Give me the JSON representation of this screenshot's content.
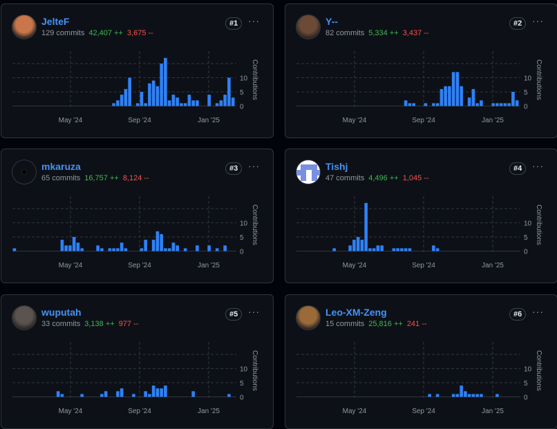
{
  "colors": {
    "accent": "#4493f8",
    "bar": "#2f81f7",
    "additions": "#3fb950",
    "deletions": "#f85149",
    "muted": "#9198a1",
    "background": "#0d1117",
    "border": "#30363d"
  },
  "chart_axis": {
    "ylabel": "Contributions",
    "yticks": [
      0,
      5,
      10
    ],
    "xticks": [
      "May '24",
      "Sep '24",
      "Jan '25"
    ],
    "gridlines": [
      0,
      5,
      10,
      15
    ]
  },
  "contributors": [
    {
      "name": "JelteF",
      "commits": "129 commits",
      "additions": "42,407 ++",
      "deletions": "3,675 --",
      "rank": "#1",
      "more": "···",
      "avatar_color": "#c8764a"
    },
    {
      "name": "Y--",
      "commits": "82 commits",
      "additions": "5,334 ++",
      "deletions": "3,437 --",
      "rank": "#2",
      "more": "···",
      "avatar_color": "#6b4a36"
    },
    {
      "name": "mkaruza",
      "commits": "65 commits",
      "additions": "16,757 ++",
      "deletions": "8,124 --",
      "rank": "#3",
      "more": "···",
      "avatar_color": "#0d1117"
    },
    {
      "name": "Tishj",
      "commits": "47 commits",
      "additions": "4,496 ++",
      "deletions": "1,045 --",
      "rank": "#4",
      "more": "···",
      "avatar_color": "#7b8fe0"
    },
    {
      "name": "wuputah",
      "commits": "33 commits",
      "additions": "3,138 ++",
      "deletions": "977 --",
      "rank": "#5",
      "more": "···",
      "avatar_color": "#5a5350"
    },
    {
      "name": "Leo-XM-Zeng",
      "commits": "15 commits",
      "additions": "25,816 ++",
      "deletions": "241 --",
      "rank": "#6",
      "more": "···",
      "avatar_color": "#9a6a3a"
    }
  ],
  "chart_data": [
    {
      "type": "bar",
      "series_of": "JelteF",
      "x_unit": "week",
      "x_start": "Jan '24",
      "ylabel": "Contributions",
      "values": [
        0,
        0,
        0,
        0,
        0,
        0,
        0,
        0,
        0,
        0,
        0,
        0,
        0,
        0,
        0,
        0,
        0,
        0,
        0,
        0,
        0,
        0,
        0,
        0,
        0,
        1,
        2,
        4,
        6,
        10,
        0,
        1,
        5,
        1,
        8,
        9,
        7,
        15,
        17,
        2,
        4,
        3,
        1,
        1,
        4,
        2,
        2,
        0,
        0,
        4,
        0,
        1,
        2,
        4,
        10,
        3
      ]
    },
    {
      "type": "bar",
      "series_of": "Y--",
      "x_unit": "week",
      "x_start": "Jan '24",
      "ylabel": "Contributions",
      "values": [
        0,
        0,
        0,
        0,
        0,
        0,
        0,
        0,
        0,
        0,
        0,
        0,
        0,
        0,
        0,
        0,
        0,
        0,
        0,
        0,
        0,
        0,
        0,
        0,
        0,
        0,
        0,
        2,
        1,
        1,
        0,
        0,
        1,
        0,
        1,
        1,
        6,
        7,
        7,
        12,
        12,
        7,
        0,
        3,
        6,
        1,
        2,
        0,
        0,
        1,
        1,
        1,
        1,
        1,
        5,
        2
      ]
    },
    {
      "type": "bar",
      "series_of": "mkaruza",
      "x_unit": "week",
      "x_start": "Jan '24",
      "ylabel": "Contributions",
      "values": [
        1,
        0,
        0,
        0,
        0,
        0,
        0,
        0,
        0,
        0,
        0,
        0,
        4,
        2,
        2,
        5,
        3,
        1,
        0,
        0,
        0,
        2,
        1,
        0,
        1,
        1,
        1,
        3,
        1,
        0,
        0,
        0,
        1,
        4,
        0,
        4,
        7,
        6,
        1,
        1,
        3,
        2,
        0,
        1,
        0,
        0,
        2,
        0,
        0,
        2,
        0,
        1,
        0,
        2,
        0,
        0
      ]
    },
    {
      "type": "bar",
      "series_of": "Tishj",
      "x_unit": "week",
      "x_start": "Jan '24",
      "ylabel": "Contributions",
      "values": [
        0,
        0,
        0,
        0,
        0,
        0,
        0,
        0,
        0,
        1,
        0,
        0,
        0,
        2,
        4,
        5,
        4,
        17,
        1,
        1,
        2,
        2,
        0,
        0,
        1,
        1,
        1,
        1,
        1,
        0,
        0,
        0,
        0,
        0,
        2,
        1,
        0,
        0,
        0,
        0,
        0,
        0,
        0,
        0,
        0,
        0,
        0,
        0,
        0,
        0,
        0,
        0,
        0,
        0,
        0,
        0
      ]
    },
    {
      "type": "bar",
      "series_of": "wuputah",
      "x_unit": "week",
      "x_start": "Jan '24",
      "ylabel": "Contributions",
      "values": [
        0,
        0,
        0,
        0,
        0,
        0,
        0,
        0,
        0,
        0,
        0,
        2,
        1,
        0,
        0,
        0,
        0,
        1,
        0,
        0,
        0,
        0,
        1,
        2,
        0,
        0,
        2,
        3,
        0,
        0,
        1,
        0,
        0,
        2,
        1,
        4,
        3,
        3,
        4,
        0,
        0,
        0,
        0,
        0,
        0,
        2,
        0,
        0,
        0,
        0,
        0,
        0,
        0,
        0,
        1,
        0
      ]
    },
    {
      "type": "bar",
      "series_of": "Leo-XM-Zeng",
      "x_unit": "week",
      "x_start": "Jan '24",
      "ylabel": "Contributions",
      "values": [
        0,
        0,
        0,
        0,
        0,
        0,
        0,
        0,
        0,
        0,
        0,
        0,
        0,
        0,
        0,
        0,
        0,
        0,
        0,
        0,
        0,
        0,
        0,
        0,
        0,
        0,
        0,
        0,
        0,
        0,
        0,
        0,
        0,
        1,
        0,
        1,
        0,
        0,
        0,
        1,
        1,
        4,
        2,
        1,
        1,
        1,
        1,
        0,
        0,
        0,
        1,
        0,
        0,
        0,
        0,
        0
      ]
    }
  ]
}
